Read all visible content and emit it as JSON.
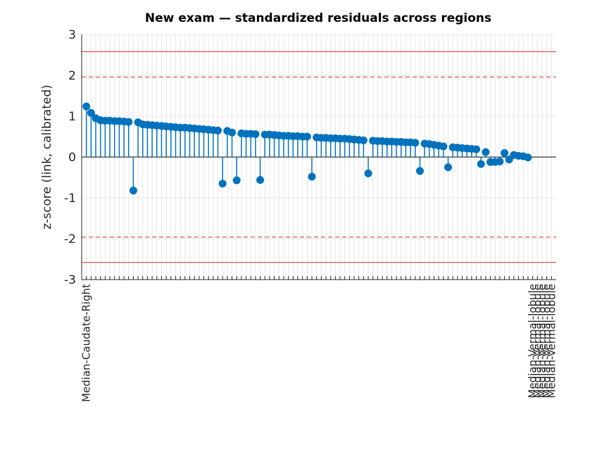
{
  "chart_data": {
    "type": "stem",
    "title": "New exam — standardized residuals across regions",
    "ylabel": "z-score (link, calibrated)",
    "categories": [
      "Median-Caudate-Right",
      null,
      null,
      null,
      null,
      null,
      null,
      null,
      null,
      null,
      null,
      null,
      null,
      null,
      null,
      null,
      null,
      null,
      null,
      null,
      null,
      null,
      null,
      null,
      null,
      null,
      null,
      null,
      null,
      null,
      null,
      null,
      null,
      null,
      null,
      null,
      null,
      null,
      null,
      null,
      null,
      null,
      null,
      null,
      null,
      null,
      null,
      null,
      null,
      null,
      null,
      null,
      null,
      null,
      null,
      null,
      null,
      null,
      null,
      null,
      null,
      null,
      null,
      null,
      null,
      null,
      null,
      null,
      null,
      null,
      null,
      null,
      null,
      null,
      null,
      null,
      null,
      null,
      null,
      null,
      null,
      null,
      null,
      null,
      null,
      null,
      null,
      null,
      null,
      null,
      null,
      null,
      null,
      null,
      null,
      "Median-Vermal-lobule",
      "Median-Vermal-lobule",
      "Median-Vermal-lobule",
      "Median-Vermal-lobule",
      "Median-Vermal-lobule"
    ],
    "values": [
      1.24,
      1.08,
      0.95,
      0.9,
      0.89,
      0.89,
      0.88,
      0.88,
      0.87,
      0.86,
      -0.82,
      0.85,
      0.8,
      0.79,
      0.78,
      0.77,
      0.76,
      0.75,
      0.74,
      0.73,
      0.72,
      0.72,
      0.71,
      0.7,
      0.69,
      0.68,
      0.67,
      0.66,
      0.65,
      -0.65,
      0.64,
      0.6,
      -0.57,
      0.58,
      0.57,
      0.57,
      0.56,
      -0.56,
      0.55,
      0.55,
      0.54,
      0.53,
      0.52,
      0.52,
      0.51,
      0.51,
      0.5,
      0.5,
      -0.48,
      0.48,
      0.47,
      0.47,
      0.46,
      0.46,
      0.45,
      0.45,
      0.44,
      0.43,
      0.42,
      0.41,
      -0.4,
      0.4,
      0.39,
      0.39,
      0.38,
      0.38,
      0.37,
      0.37,
      0.36,
      0.36,
      0.35,
      -0.34,
      0.33,
      0.32,
      0.3,
      0.28,
      0.26,
      -0.25,
      0.24,
      0.23,
      0.22,
      0.21,
      0.2,
      0.19,
      -0.17,
      0.12,
      -0.12,
      -0.12,
      -0.11,
      0.1,
      -0.06,
      0.05,
      0.03,
      0.02,
      -0.01,
      null,
      null,
      null,
      null,
      null
    ],
    "color": "#0072bd",
    "xlim": [
      0,
      101
    ],
    "ylim": [
      -3,
      3
    ],
    "yticks": [
      -3,
      -2,
      -1,
      0,
      1,
      2,
      3
    ],
    "grid": true,
    "reference_lines": [
      {
        "value": 2.58,
        "style": "solid",
        "color": "#e03030"
      },
      {
        "value": 1.96,
        "style": "dashed",
        "color": "#e03030"
      },
      {
        "value": -1.96,
        "style": "dashed",
        "color": "#e03030"
      },
      {
        "value": -2.58,
        "style": "solid",
        "color": "#e03030"
      }
    ]
  }
}
